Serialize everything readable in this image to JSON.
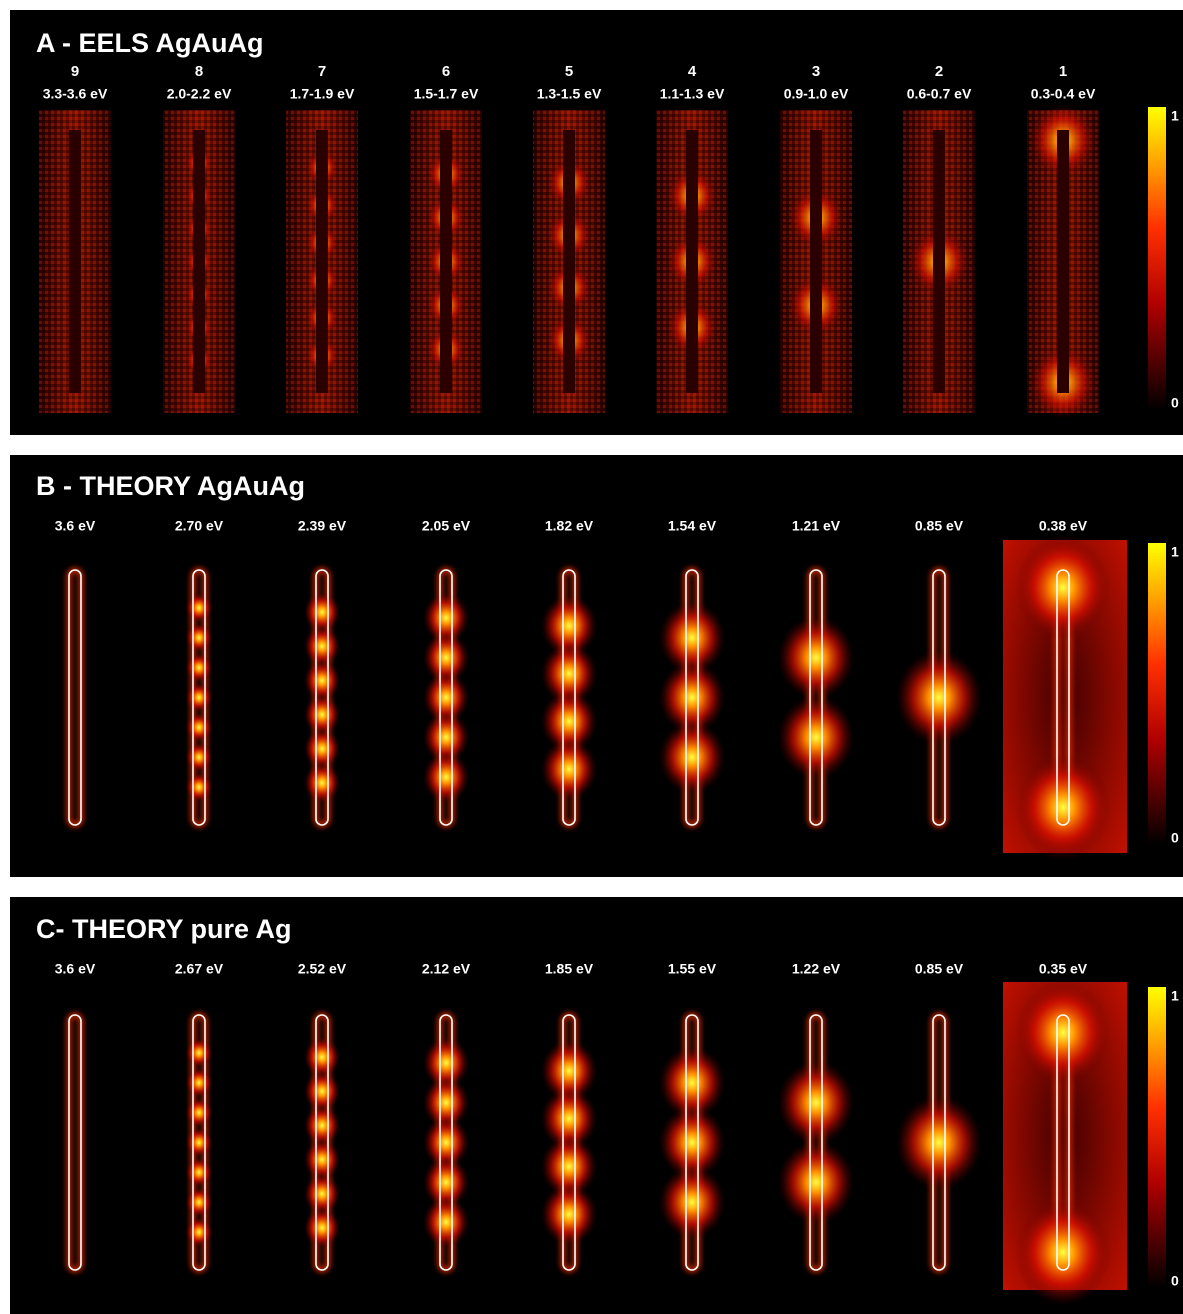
{
  "panels": [
    {
      "title": "A - EELS AgAuAg",
      "modes": [
        {
          "number": "9",
          "energy": "3.3-3.6 eV"
        },
        {
          "number": "8",
          "energy": "2.0-2.2 eV"
        },
        {
          "number": "7",
          "energy": "1.7-1.9 eV"
        },
        {
          "number": "6",
          "energy": "1.5-1.7 eV"
        },
        {
          "number": "5",
          "energy": "1.3-1.5 eV"
        },
        {
          "number": "4",
          "energy": "1.1-1.3 eV"
        },
        {
          "number": "3",
          "energy": "0.9-1.0 eV"
        },
        {
          "number": "2",
          "energy": "0.6-0.7 eV"
        },
        {
          "number": "1",
          "energy": "0.3-0.4 eV"
        }
      ],
      "colorbar": {
        "max": "1",
        "min": "0"
      }
    },
    {
      "title": "B - THEORY AgAuAg",
      "modes": [
        {
          "energy": "3.6 eV"
        },
        {
          "energy": "2.70 eV"
        },
        {
          "energy": "2.39 eV"
        },
        {
          "energy": "2.05 eV"
        },
        {
          "energy": "1.82 eV"
        },
        {
          "energy": "1.54 eV"
        },
        {
          "energy": "1.21 eV"
        },
        {
          "energy": "0.85 eV"
        },
        {
          "energy": "0.38 eV"
        }
      ],
      "colorbar": {
        "max": "1",
        "min": "0"
      }
    },
    {
      "title": "C- THEORY pure Ag",
      "modes": [
        {
          "energy": "3.6 eV"
        },
        {
          "energy": "2.67 eV"
        },
        {
          "energy": "2.52 eV"
        },
        {
          "energy": "2.12 eV"
        },
        {
          "energy": "1.85 eV"
        },
        {
          "energy": "1.55 eV"
        },
        {
          "energy": "1.22 eV"
        },
        {
          "energy": "0.85 eV"
        },
        {
          "energy": "0.35 eV"
        }
      ],
      "colorbar": {
        "max": "1",
        "min": "0"
      }
    }
  ]
}
